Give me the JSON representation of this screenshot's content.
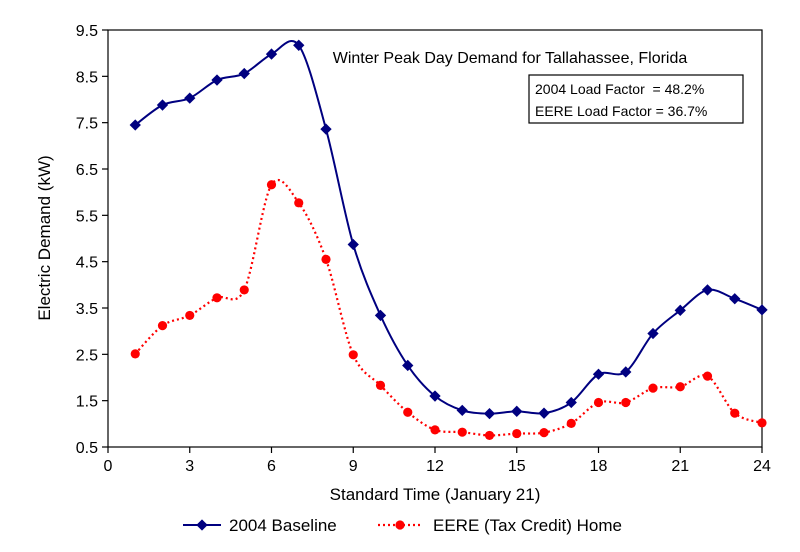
{
  "chart_data": {
    "type": "line",
    "title": "Winter Peak Day Demand for Tallahassee, Florida",
    "xlabel": "Standard Time (January 21)",
    "ylabel": "Electric Demand (kW)",
    "xlim": [
      0,
      24
    ],
    "ylim": [
      0.5,
      9.5
    ],
    "x_ticks": [
      0,
      3,
      6,
      9,
      12,
      15,
      18,
      21,
      24
    ],
    "y_ticks": [
      0.5,
      1.5,
      2.5,
      3.5,
      4.5,
      5.5,
      6.5,
      7.5,
      8.5,
      9.5
    ],
    "x_tick_labels": [
      "0",
      "3",
      "6",
      "9",
      "12",
      "15",
      "18",
      "21",
      "24"
    ],
    "y_tick_labels": [
      "0.5",
      "1.5",
      "2.5",
      "3.5",
      "4.5",
      "5.5",
      "6.5",
      "7.5",
      "8.5",
      "9.5"
    ],
    "grid": false,
    "legend_position": "bottom",
    "annotations": [
      "2004 Load Factor  = 48.2%",
      "EERE Load Factor = 36.7%"
    ],
    "x": [
      1,
      2,
      3,
      4,
      5,
      6,
      7,
      8,
      9,
      10,
      11,
      12,
      13,
      14,
      15,
      16,
      17,
      18,
      19,
      20,
      21,
      22,
      23,
      24
    ],
    "series": [
      {
        "name": "2004 Baseline",
        "color": "#000080",
        "line_style": "solid",
        "marker": "diamond",
        "values": [
          7.45,
          7.88,
          8.03,
          8.42,
          8.56,
          8.98,
          9.17,
          7.36,
          4.87,
          3.34,
          2.26,
          1.6,
          1.29,
          1.22,
          1.27,
          1.23,
          1.46,
          2.07,
          2.12,
          2.95,
          3.45,
          3.89,
          3.7,
          3.46
        ]
      },
      {
        "name": "EERE (Tax Credit) Home",
        "color": "#ff0000",
        "line_style": "dotted",
        "marker": "circle",
        "values": [
          2.51,
          3.12,
          3.34,
          3.72,
          3.89,
          6.16,
          5.77,
          4.55,
          2.49,
          1.83,
          1.25,
          0.87,
          0.82,
          0.75,
          0.79,
          0.81,
          1.01,
          1.46,
          1.46,
          1.77,
          1.8,
          2.03,
          1.23,
          1.02
        ]
      }
    ]
  }
}
